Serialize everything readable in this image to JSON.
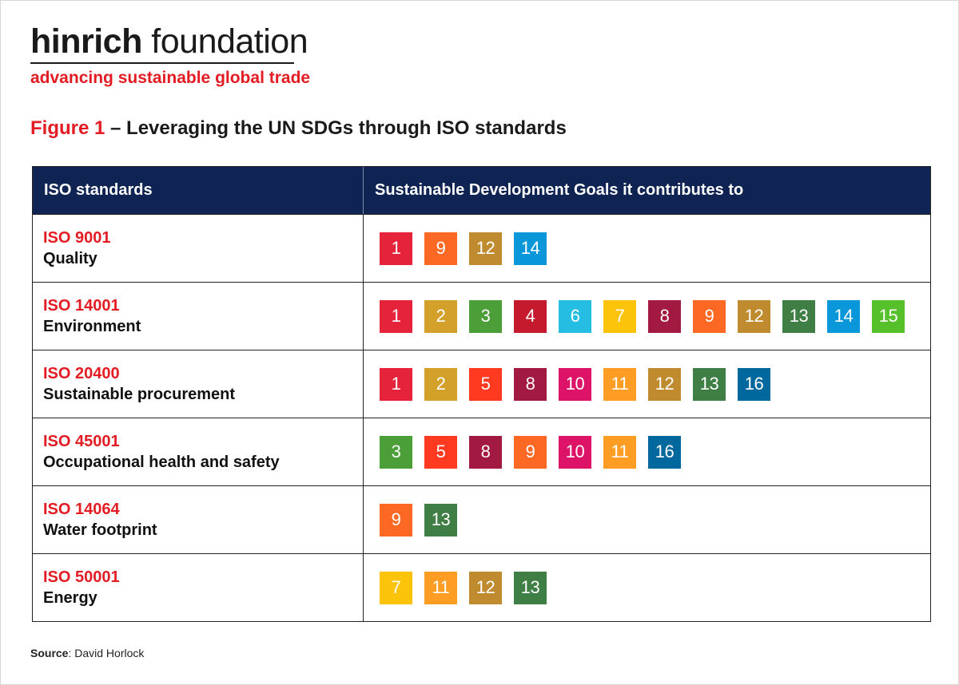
{
  "logo": {
    "brand_bold": "hinrich",
    "brand_light": " foundation",
    "tagline": "advancing sustainable global trade"
  },
  "figure": {
    "number": "Figure 1",
    "title": " – Leveraging the UN SDGs through ISO standards"
  },
  "table": {
    "headers": [
      "ISO standards",
      "Sustainable Development Goals it contributes to"
    ],
    "rows": [
      {
        "code": "ISO 9001",
        "name": "Quality",
        "sdgs": [
          1,
          9,
          12,
          14
        ]
      },
      {
        "code": "ISO 14001",
        "name": "Environment",
        "sdgs": [
          1,
          2,
          3,
          4,
          6,
          7,
          8,
          9,
          12,
          13,
          14,
          15
        ]
      },
      {
        "code": "ISO 20400",
        "name": "Sustainable procurement",
        "sdgs": [
          1,
          2,
          5,
          8,
          10,
          11,
          12,
          13,
          16
        ]
      },
      {
        "code": "ISO 45001",
        "name": "Occupational health and safety",
        "sdgs": [
          3,
          5,
          8,
          9,
          10,
          11,
          16
        ]
      },
      {
        "code": "ISO 14064",
        "name": "Water footprint",
        "sdgs": [
          9,
          13
        ]
      },
      {
        "code": "ISO 50001",
        "name": "Energy",
        "sdgs": [
          7,
          11,
          12,
          13
        ]
      }
    ]
  },
  "sdg_colors": {
    "1": "#e5243b",
    "2": "#d3a029",
    "3": "#4c9f38",
    "4": "#c5192d",
    "5": "#ff3a21",
    "6": "#26bde2",
    "7": "#fcc30b",
    "8": "#a21942",
    "9": "#fd6925",
    "10": "#dd1367",
    "11": "#fd9d24",
    "12": "#bf8b2e",
    "13": "#3f7e44",
    "14": "#0a97d9",
    "15": "#56c02b",
    "16": "#00689d"
  },
  "source": {
    "label": "Source",
    "text": ": David Horlock"
  }
}
